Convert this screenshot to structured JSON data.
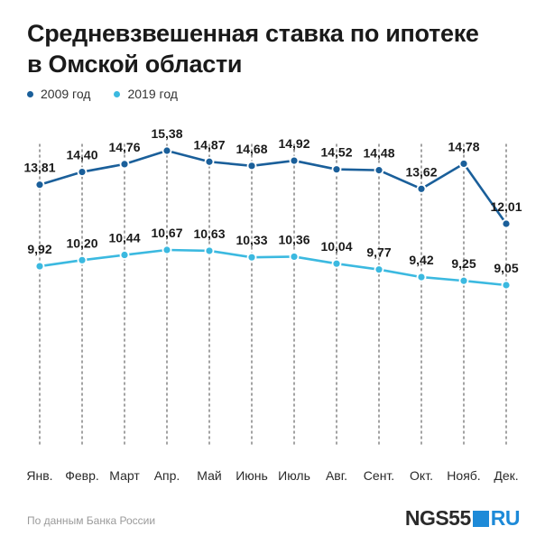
{
  "title": "Средневзвешенная ставка по ипотеке\nв Омской области",
  "source": "По данным Банка России",
  "logo": {
    "left": "NGS55",
    "right": "RU"
  },
  "colors": {
    "series_2009": "#1a5f9a",
    "series_2019": "#3bb9e0",
    "grid": "#8c8c8c",
    "text": "#1a1a1a"
  },
  "chart_data": {
    "type": "line",
    "categories": [
      "Янв.",
      "Февр.",
      "Март",
      "Апр.",
      "Май",
      "Июнь",
      "Июль",
      "Авг.",
      "Сент.",
      "Окт.",
      "Нояб.",
      "Дек."
    ],
    "series": [
      {
        "name": "2009 год",
        "color": "#1a5f9a",
        "values": [
          13.81,
          14.4,
          14.76,
          15.38,
          14.87,
          14.68,
          14.92,
          14.52,
          14.48,
          13.62,
          14.78,
          12.01
        ],
        "labels": [
          "13,81",
          "14,40",
          "14,76",
          "15,38",
          "14,87",
          "14,68",
          "14,92",
          "14,52",
          "14,48",
          "13,62",
          "14,78",
          "12,01"
        ]
      },
      {
        "name": "2019 год",
        "color": "#3bb9e0",
        "values": [
          9.92,
          10.2,
          10.44,
          10.67,
          10.63,
          10.33,
          10.36,
          10.04,
          9.77,
          9.42,
          9.25,
          9.05
        ],
        "labels": [
          "9,92",
          "10,20",
          "10,44",
          "10,67",
          "10,63",
          "10,33",
          "10,36",
          "10,04",
          "9,77",
          "9,42",
          "9,25",
          "9,05"
        ]
      }
    ],
    "xlabel": "",
    "ylabel": "",
    "grid": "vertical dashed",
    "legend": "top-left"
  }
}
